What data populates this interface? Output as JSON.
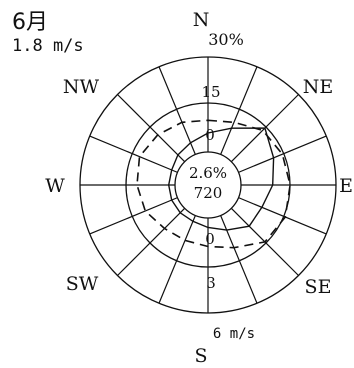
{
  "header": {
    "month": "6月",
    "mean_speed": "1.8 m/s"
  },
  "chart_data": {
    "type": "wind_rose",
    "directions": [
      "N",
      "NNE",
      "NE",
      "ENE",
      "E",
      "ESE",
      "SE",
      "SSE",
      "S",
      "SSW",
      "SW",
      "WSW",
      "W",
      "WNW",
      "NW",
      "NNW"
    ],
    "compass_labels": {
      "N": "N",
      "NE": "NE",
      "E": "E",
      "SE": "SE",
      "S": "S",
      "SW": "SW",
      "W": "W",
      "NW": "NW"
    },
    "frequency_scale": {
      "max": 30,
      "ticks": [
        0,
        15,
        30
      ],
      "tick_labels": [
        "0",
        "15",
        "30%"
      ]
    },
    "speed_scale": {
      "max": 6,
      "ticks": [
        0,
        3,
        6
      ],
      "tick_labels": [
        "0",
        "3",
        "6 m/s"
      ]
    },
    "center": {
      "calm_percent": "2.6%",
      "count": "720"
    },
    "series": [
      {
        "style": "solid",
        "quantity": "frequency",
        "values": [
          6,
          9,
          15,
          12,
          10,
          8,
          8,
          5,
          3,
          2,
          2,
          2,
          2,
          2,
          3,
          4
        ]
      },
      {
        "style": "dashed",
        "quantity": "mean_speed",
        "values": [
          2.0,
          2.2,
          2.8,
          3.0,
          3.1,
          3.2,
          3.0,
          2.2,
          1.8,
          1.7,
          1.8,
          2.2,
          2.4,
          2.6,
          2.4,
          2.2
        ]
      }
    ],
    "grid": true
  }
}
